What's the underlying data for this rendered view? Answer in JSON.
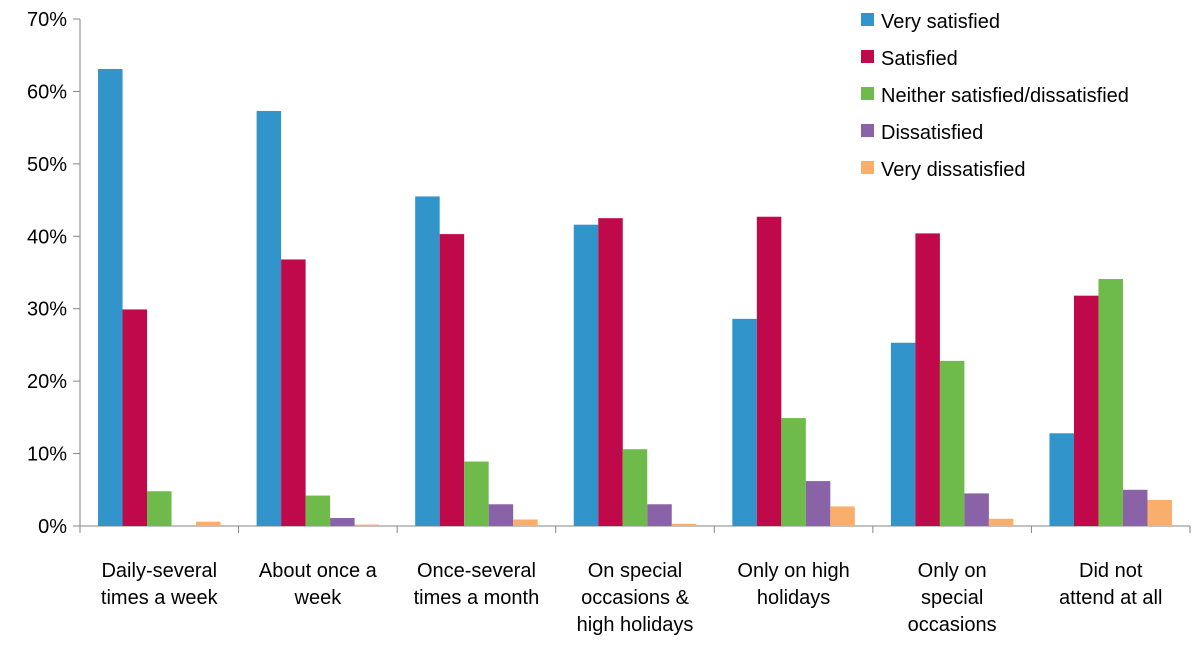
{
  "chart_data": {
    "type": "bar",
    "title": "",
    "xlabel": "",
    "ylabel": "",
    "ylim": [
      0,
      70
    ],
    "y_tick_step": 10,
    "y_tick_format": "percent",
    "grid": false,
    "legend_position": "top-right",
    "categories": [
      [
        "Daily-several",
        "times a week"
      ],
      [
        "About once a",
        "week"
      ],
      [
        "Once-several",
        "times a month"
      ],
      [
        "On special",
        "occasions &",
        "high holidays"
      ],
      [
        "Only on high",
        "holidays"
      ],
      [
        "Only on",
        "special",
        "occasions"
      ],
      [
        "Did not",
        "attend at all"
      ]
    ],
    "series": [
      {
        "name": "Very satisfied",
        "color": "#3194CB",
        "values": [
          63.1,
          57.3,
          45.5,
          41.6,
          28.6,
          25.3,
          12.8
        ]
      },
      {
        "name": "Satisfied",
        "color": "#C0094B",
        "values": [
          29.9,
          36.8,
          40.3,
          42.5,
          42.7,
          40.4,
          31.8
        ]
      },
      {
        "name": "Neither satisfied/dissatisfied",
        "color": "#6EBB4B",
        "values": [
          4.8,
          4.2,
          8.9,
          10.6,
          14.9,
          22.8,
          34.1
        ]
      },
      {
        "name": "Dissatisfied",
        "color": "#8A62A8",
        "values": [
          0.0,
          1.1,
          3.0,
          3.0,
          6.2,
          4.5,
          5.0
        ]
      },
      {
        "name": "Very dissatisfied",
        "color": "#F9AE6B",
        "values": [
          0.6,
          0.2,
          0.9,
          0.3,
          2.7,
          1.0,
          3.6
        ]
      }
    ]
  }
}
